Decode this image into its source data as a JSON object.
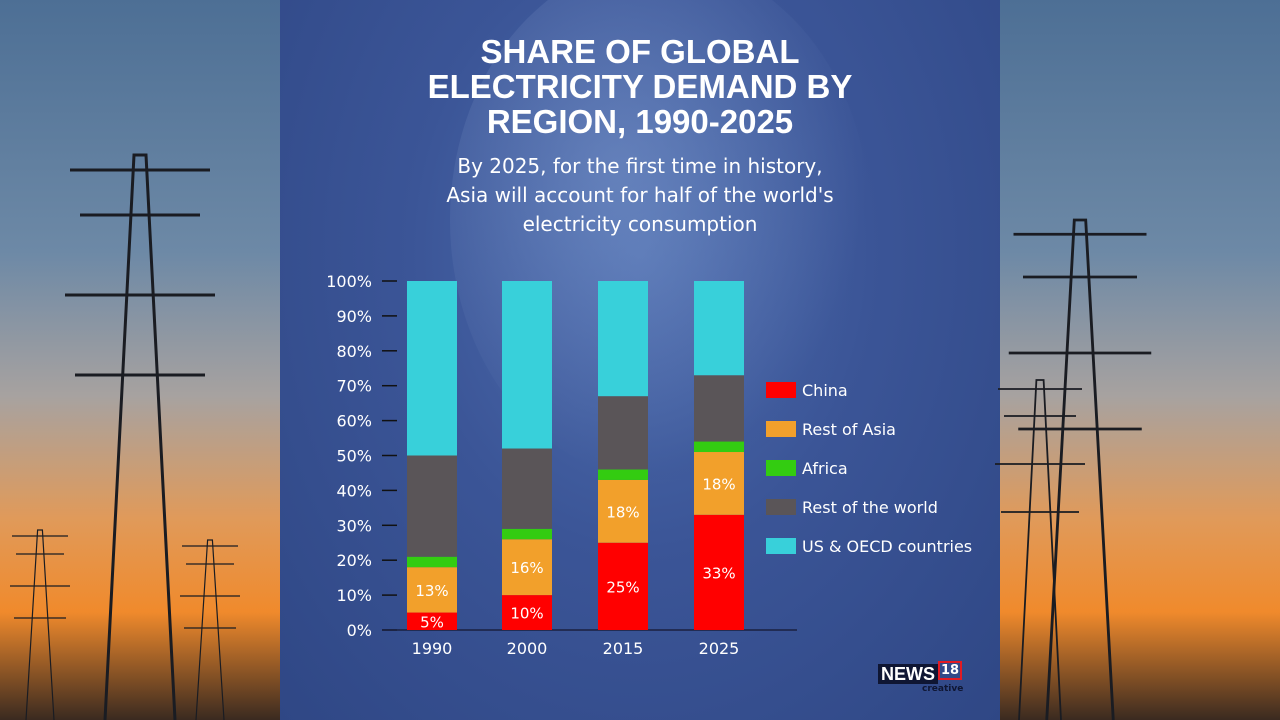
{
  "chart_data": {
    "type": "bar",
    "stacked": true,
    "title": "SHARE OF GLOBAL ELECTRICITY DEMAND BY REGION, 1990-2025",
    "title_lines": [
      "SHARE OF GLOBAL",
      "ELECTRICITY DEMAND BY",
      "REGION, 1990-2025"
    ],
    "subtitle_lines": [
      "By 2025, for the first time in history,",
      "Asia will account for half of the world's",
      "electricity consumption"
    ],
    "categories": [
      "1990",
      "2000",
      "2015",
      "2025"
    ],
    "ylim": [
      0,
      100
    ],
    "yticks": [
      "0%",
      "10%",
      "20%",
      "30%",
      "40%",
      "50%",
      "60%",
      "70%",
      "80%",
      "90%",
      "100%"
    ],
    "legend_position": "right",
    "series": [
      {
        "name": "China",
        "color": "#ff0000",
        "values": [
          5,
          10,
          25,
          33
        ],
        "labels": [
          "5%",
          "10%",
          "25%",
          "33%"
        ]
      },
      {
        "name": "Rest of Asia",
        "color": "#f2a02b",
        "values": [
          13,
          16,
          18,
          18
        ],
        "labels": [
          "13%",
          "16%",
          "18%",
          "18%"
        ]
      },
      {
        "name": "Africa",
        "color": "#33cc11",
        "values": [
          3,
          3,
          3,
          3
        ]
      },
      {
        "name": "Rest of the world",
        "color": "#5a5558",
        "values": [
          29,
          23,
          21,
          19
        ]
      },
      {
        "name": "US & OECD countries",
        "color": "#38d0da",
        "values": [
          50,
          48,
          33,
          27
        ]
      }
    ]
  },
  "logo": {
    "text": "NEWS",
    "number": "18",
    "sub": "creative"
  }
}
